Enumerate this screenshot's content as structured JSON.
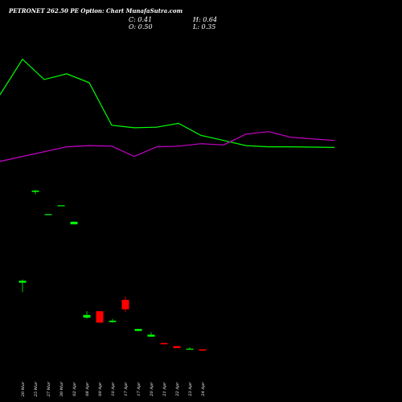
{
  "header": {
    "title": "PETRONET 262.50 PE Option: Chart MunafaSutra.com",
    "close": "C: 0.41",
    "open": "O: 0.50",
    "high": "H: 0.64",
    "low": "L: 0.35"
  },
  "colors": {
    "background": "#000000",
    "up": "#00ff00",
    "down": "#ff0000",
    "line_green": "#00ff00",
    "line_magenta": "#cc00cc",
    "text": "#ffffff"
  },
  "chart_data": {
    "type": "candlestick",
    "categories": [
      "20 Mar",
      "25 Mar",
      "27 Mar",
      "30 Mar",
      "02 Apr",
      "08 Apr",
      "09 Apr",
      "10 Apr",
      "17 Apr",
      "17 Apr",
      "20 Apr",
      "21 Apr",
      "22 Apr",
      "23 Apr",
      "24 Apr"
    ],
    "candles": [
      {
        "open": 3.06,
        "high": 3.1,
        "low": 2.7,
        "close": 3.0,
        "dir": "up"
      },
      {
        "open": 5.86,
        "high": 5.92,
        "low": 5.78,
        "close": 5.9,
        "dir": "up"
      },
      {
        "open": 5.16,
        "high": 5.16,
        "low": 5.16,
        "close": 5.16,
        "dir": "up"
      },
      {
        "open": 5.44,
        "high": 5.44,
        "low": 5.44,
        "close": 5.44,
        "dir": "up"
      },
      {
        "open": 4.84,
        "high": 4.92,
        "low": 4.84,
        "close": 4.92,
        "dir": "up"
      },
      {
        "open": 1.9,
        "high": 2.1,
        "low": 1.86,
        "close": 1.98,
        "dir": "up"
      },
      {
        "open": 2.1,
        "high": 2.1,
        "low": 1.74,
        "close": 1.74,
        "dir": "down"
      },
      {
        "open": 1.76,
        "high": 1.86,
        "low": 1.74,
        "close": 1.8,
        "dir": "up"
      },
      {
        "open": 2.46,
        "high": 2.56,
        "low": 2.08,
        "close": 2.16,
        "dir": "down"
      },
      {
        "open": 1.48,
        "high": 1.54,
        "low": 1.48,
        "close": 1.54,
        "dir": "up"
      },
      {
        "open": 1.3,
        "high": 1.44,
        "low": 1.3,
        "close": 1.36,
        "dir": "up"
      },
      {
        "open": 1.1,
        "high": 1.1,
        "low": 1.06,
        "close": 1.06,
        "dir": "down"
      },
      {
        "open": 1.0,
        "high": 1.0,
        "low": 0.94,
        "close": 0.94,
        "dir": "down"
      },
      {
        "open": 0.92,
        "high": 0.96,
        "low": 0.9,
        "close": 0.92,
        "dir": "up"
      },
      {
        "open": 0.9,
        "high": 0.9,
        "low": 0.86,
        "close": 0.86,
        "dir": "down"
      }
    ],
    "overlay_series": [
      {
        "color": "#00ff00",
        "values": [
          8.92,
          10.04,
          9.4,
          9.58,
          9.3,
          7.96,
          7.88,
          7.9,
          8.02,
          7.64,
          7.48,
          7.32,
          7.28,
          7.28,
          7.26
        ]
      },
      {
        "color": "#cc00cc",
        "values": [
          6.82,
          7.28,
          7.32,
          7.3,
          6.98,
          7.28,
          7.3,
          7.38,
          7.34,
          7.68,
          7.76,
          7.58,
          7.48
        ]
      }
    ],
    "overlay_start": {
      "green": -0.3,
      "magenta": -0.25
    },
    "ylim": [
      0,
      11.4
    ],
    "grid": false,
    "legend": "none"
  }
}
